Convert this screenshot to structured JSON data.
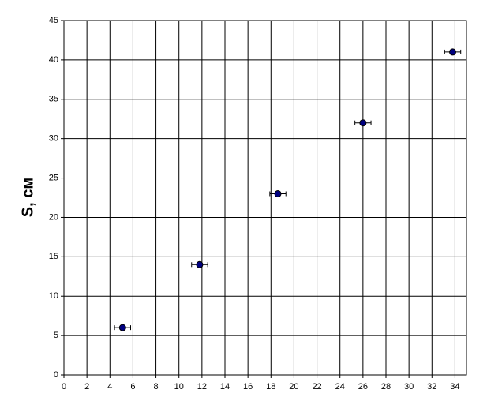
{
  "chart_data": {
    "type": "scatter",
    "y_label": "S, см",
    "x": [
      5.1,
      11.8,
      18.6,
      26.0,
      33.8
    ],
    "values": [
      6,
      14,
      23,
      32,
      41
    ],
    "xerr": [
      0.7,
      0.7,
      0.7,
      0.7,
      0.7
    ],
    "color": "#000080",
    "xlim": [
      0,
      35
    ],
    "xticks": [
      0,
      2,
      4,
      6,
      8,
      10,
      12,
      14,
      16,
      18,
      20,
      22,
      24,
      26,
      28,
      30,
      32,
      34
    ],
    "ylim": [
      0,
      45
    ],
    "yticks": [
      0,
      5,
      10,
      15,
      20,
      25,
      30,
      35,
      40,
      45
    ],
    "grid": true
  }
}
